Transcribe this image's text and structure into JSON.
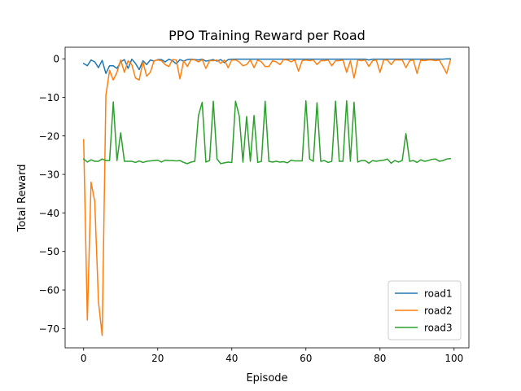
{
  "chart_data": {
    "type": "line",
    "title": "PPO Training Reward per Road",
    "xlabel": "Episode",
    "ylabel": "Total Reward",
    "xlim": [
      -5,
      104
    ],
    "ylim": [
      -75,
      3
    ],
    "xticks": [
      0,
      20,
      40,
      60,
      80,
      100
    ],
    "yticks": [
      0,
      -10,
      -20,
      -30,
      -40,
      -50,
      -60,
      -70
    ],
    "grid": false,
    "legend_position": "lower right",
    "series": [
      {
        "name": "road1",
        "color": "#1f77b4",
        "x": [
          0,
          1,
          2,
          3,
          4,
          5,
          6,
          7,
          8,
          9,
          10,
          11,
          12,
          13,
          14,
          15,
          16,
          17,
          18,
          19,
          20,
          21,
          22,
          23,
          24,
          25,
          26,
          27,
          28,
          29,
          30,
          31,
          32,
          33,
          34,
          35,
          36,
          37,
          38,
          39,
          40,
          41,
          42,
          43,
          44,
          45,
          46,
          47,
          48,
          49,
          50,
          51,
          52,
          53,
          54,
          55,
          56,
          57,
          58,
          59,
          60,
          61,
          62,
          63,
          64,
          65,
          66,
          67,
          68,
          69,
          70,
          71,
          72,
          73,
          74,
          75,
          76,
          77,
          78,
          79,
          80,
          81,
          82,
          83,
          84,
          85,
          86,
          87,
          88,
          89,
          90,
          91,
          92,
          93,
          94,
          95,
          96,
          97,
          98,
          99
        ],
        "y": [
          -1.2,
          -1.8,
          -0.3,
          -0.8,
          -2.3,
          -0.4,
          -3.8,
          -1.8,
          -1.8,
          -2.5,
          -0.8,
          -0.2,
          -2.5,
          -0.1,
          -1.2,
          -2.8,
          -0.5,
          -1.5,
          -0.3,
          -0.6,
          -0.2,
          -0.2,
          -0.8,
          -0.1,
          -0.5,
          -1.3,
          -0.2,
          -0.6,
          -0.2,
          -0.1,
          -0.2,
          -0.3,
          -0.1,
          -0.6,
          -0.4,
          -0.2,
          -0.6,
          -0.2,
          -1.0,
          -0.2,
          -0.1,
          -0.1,
          -0.1,
          -0.1,
          -0.1,
          -0.1,
          -0.1,
          -0.1,
          -0.1,
          -0.1,
          -0.1,
          -0.1,
          -0.1,
          -0.1,
          -0.1,
          -0.1,
          -0.1,
          -0.1,
          -0.1,
          -0.1,
          -0.1,
          -0.1,
          -0.1,
          -0.1,
          -0.1,
          -0.1,
          -0.1,
          -0.1,
          -0.1,
          -0.1,
          -0.1,
          -0.1,
          -0.1,
          -0.1,
          -0.1,
          -0.1,
          -0.1,
          -0.3,
          -0.1,
          -0.1,
          -0.1,
          -0.1,
          -0.1,
          -0.1,
          -0.1,
          -0.1,
          -0.1,
          -0.1,
          -0.1,
          -0.1,
          -0.1,
          -0.1,
          -0.1,
          -0.1,
          -0.1,
          -0.1,
          -0.1,
          -0.1,
          0.0,
          0.0
        ]
      },
      {
        "name": "road2",
        "color": "#ff7f0e",
        "x": [
          0,
          1,
          2,
          3,
          4,
          5,
          6,
          7,
          8,
          9,
          10,
          11,
          12,
          13,
          14,
          15,
          16,
          17,
          18,
          19,
          20,
          21,
          22,
          23,
          24,
          25,
          26,
          27,
          28,
          29,
          30,
          31,
          32,
          33,
          34,
          35,
          36,
          37,
          38,
          39,
          40,
          41,
          42,
          43,
          44,
          45,
          46,
          47,
          48,
          49,
          50,
          51,
          52,
          53,
          54,
          55,
          56,
          57,
          58,
          59,
          60,
          61,
          62,
          63,
          64,
          65,
          66,
          67,
          68,
          69,
          70,
          71,
          72,
          73,
          74,
          75,
          76,
          77,
          78,
          79,
          80,
          81,
          82,
          83,
          84,
          85,
          86,
          87,
          88,
          89,
          90,
          91,
          92,
          93,
          94,
          95,
          96,
          97,
          98,
          99
        ],
        "y": [
          -21,
          -67.8,
          -32,
          -37,
          -63,
          -71.8,
          -9.5,
          -3,
          -5.5,
          -3.5,
          -0.3,
          -3.5,
          -0.5,
          -1.5,
          -5.0,
          -5.5,
          -0.8,
          -4.5,
          -3.5,
          -0.5,
          -0.3,
          -0.5,
          -1.5,
          -2.0,
          -0.2,
          -0.3,
          -5.2,
          -0.5,
          -2.0,
          -0.2,
          -0.3,
          -0.8,
          -0.2,
          -2.5,
          -0.5,
          -0.5,
          -0.3,
          -1.2,
          -0.3,
          -2.3,
          -0.3,
          -0.3,
          -0.8,
          -1.8,
          -1.5,
          -0.3,
          -2.3,
          -0.3,
          -0.8,
          -2.0,
          -2.0,
          -0.5,
          -0.8,
          -1.5,
          -0.2,
          -0.3,
          -0.8,
          -0.3,
          -3.2,
          -0.5,
          -0.3,
          -0.5,
          -0.3,
          -1.5,
          -0.5,
          -0.5,
          -0.3,
          -1.8,
          -0.5,
          -0.5,
          -0.3,
          -3.5,
          -0.5,
          -5.0,
          -0.3,
          -0.5,
          -0.3,
          -2.0,
          -0.5,
          -0.3,
          -3.5,
          -0.3,
          -0.3,
          -1.5,
          -0.3,
          -0.3,
          -0.3,
          -2.3,
          -0.5,
          -0.3,
          -3.8,
          -0.3,
          -0.5,
          -0.3,
          -0.3,
          -0.5,
          -0.3,
          -2.0,
          -3.8,
          -0.3
        ]
      },
      {
        "name": "road3",
        "color": "#2ca02c",
        "x": [
          0,
          1,
          2,
          3,
          4,
          5,
          6,
          7,
          8,
          9,
          10,
          11,
          12,
          13,
          14,
          15,
          16,
          17,
          18,
          19,
          20,
          21,
          22,
          23,
          24,
          25,
          26,
          27,
          28,
          29,
          30,
          31,
          32,
          33,
          34,
          35,
          36,
          37,
          38,
          39,
          40,
          41,
          42,
          43,
          44,
          45,
          46,
          47,
          48,
          49,
          50,
          51,
          52,
          53,
          54,
          55,
          56,
          57,
          58,
          59,
          60,
          61,
          62,
          63,
          64,
          65,
          66,
          67,
          68,
          69,
          70,
          71,
          72,
          73,
          74,
          75,
          76,
          77,
          78,
          79,
          80,
          81,
          82,
          83,
          84,
          85,
          86,
          87,
          88,
          89,
          90,
          91,
          92,
          93,
          94,
          95,
          96,
          97,
          98,
          99
        ],
        "y": [
          -26.0,
          -26.8,
          -26.2,
          -26.6,
          -26.6,
          -26.0,
          -26.4,
          -26.4,
          -11.2,
          -26.4,
          -19.2,
          -26.6,
          -26.6,
          -26.6,
          -26.9,
          -26.5,
          -26.9,
          -26.6,
          -26.5,
          -26.4,
          -26.3,
          -26.8,
          -26.3,
          -26.4,
          -26.4,
          -26.5,
          -26.4,
          -26.9,
          -27.2,
          -26.8,
          -26.6,
          -14.7,
          -11.3,
          -26.8,
          -26.4,
          -11.0,
          -26.0,
          -27.2,
          -27.0,
          -26.8,
          -26.9,
          -11.0,
          -14.8,
          -26.8,
          -15.0,
          -26.6,
          -14.7,
          -26.9,
          -26.6,
          -11.0,
          -26.6,
          -26.8,
          -26.6,
          -26.8,
          -26.7,
          -27.0,
          -26.3,
          -26.5,
          -26.5,
          -26.5,
          -10.9,
          -26.0,
          -26.6,
          -11.4,
          -26.6,
          -26.4,
          -26.9,
          -26.6,
          -11.0,
          -26.6,
          -26.6,
          -10.9,
          -26.6,
          -11.3,
          -26.8,
          -26.4,
          -26.4,
          -27.1,
          -26.4,
          -26.6,
          -26.4,
          -26.3,
          -26.0,
          -27.1,
          -26.4,
          -26.8,
          -26.4,
          -19.4,
          -26.6,
          -26.4,
          -26.9,
          -26.2,
          -26.6,
          -26.4,
          -26.1,
          -26.0,
          -26.6,
          -26.4,
          -26.0,
          -25.9
        ]
      }
    ]
  }
}
